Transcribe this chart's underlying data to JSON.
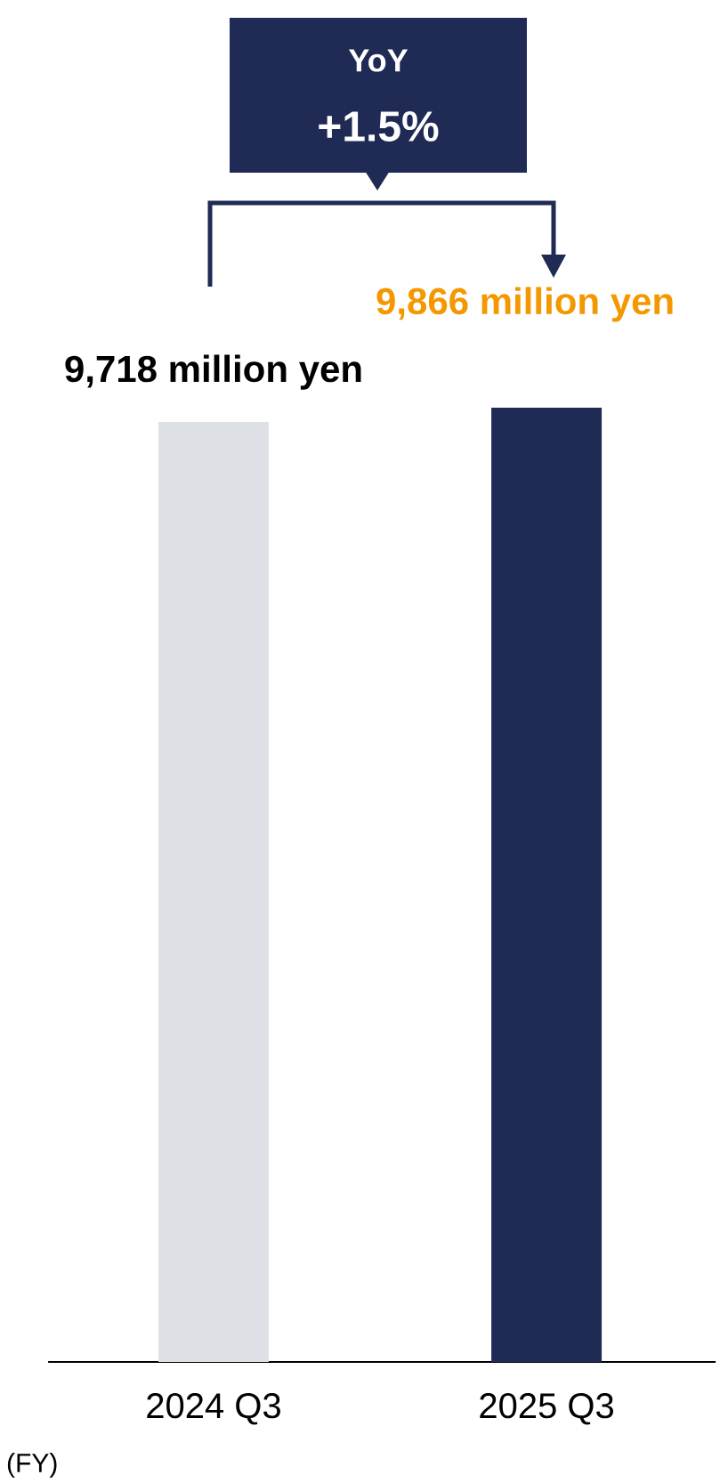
{
  "chart_data": {
    "type": "bar",
    "categories": [
      "2024 Q3",
      "2025 Q3"
    ],
    "values": [
      9718,
      9866
    ],
    "colors": [
      "#dde1e6",
      "#1f2b55"
    ],
    "value_labels": [
      "9,718 million yen",
      "9,866 million yen"
    ],
    "tick_labels": "x",
    "annotations": [
      "YoY",
      "+1.5%",
      "(FY)"
    ]
  }
}
